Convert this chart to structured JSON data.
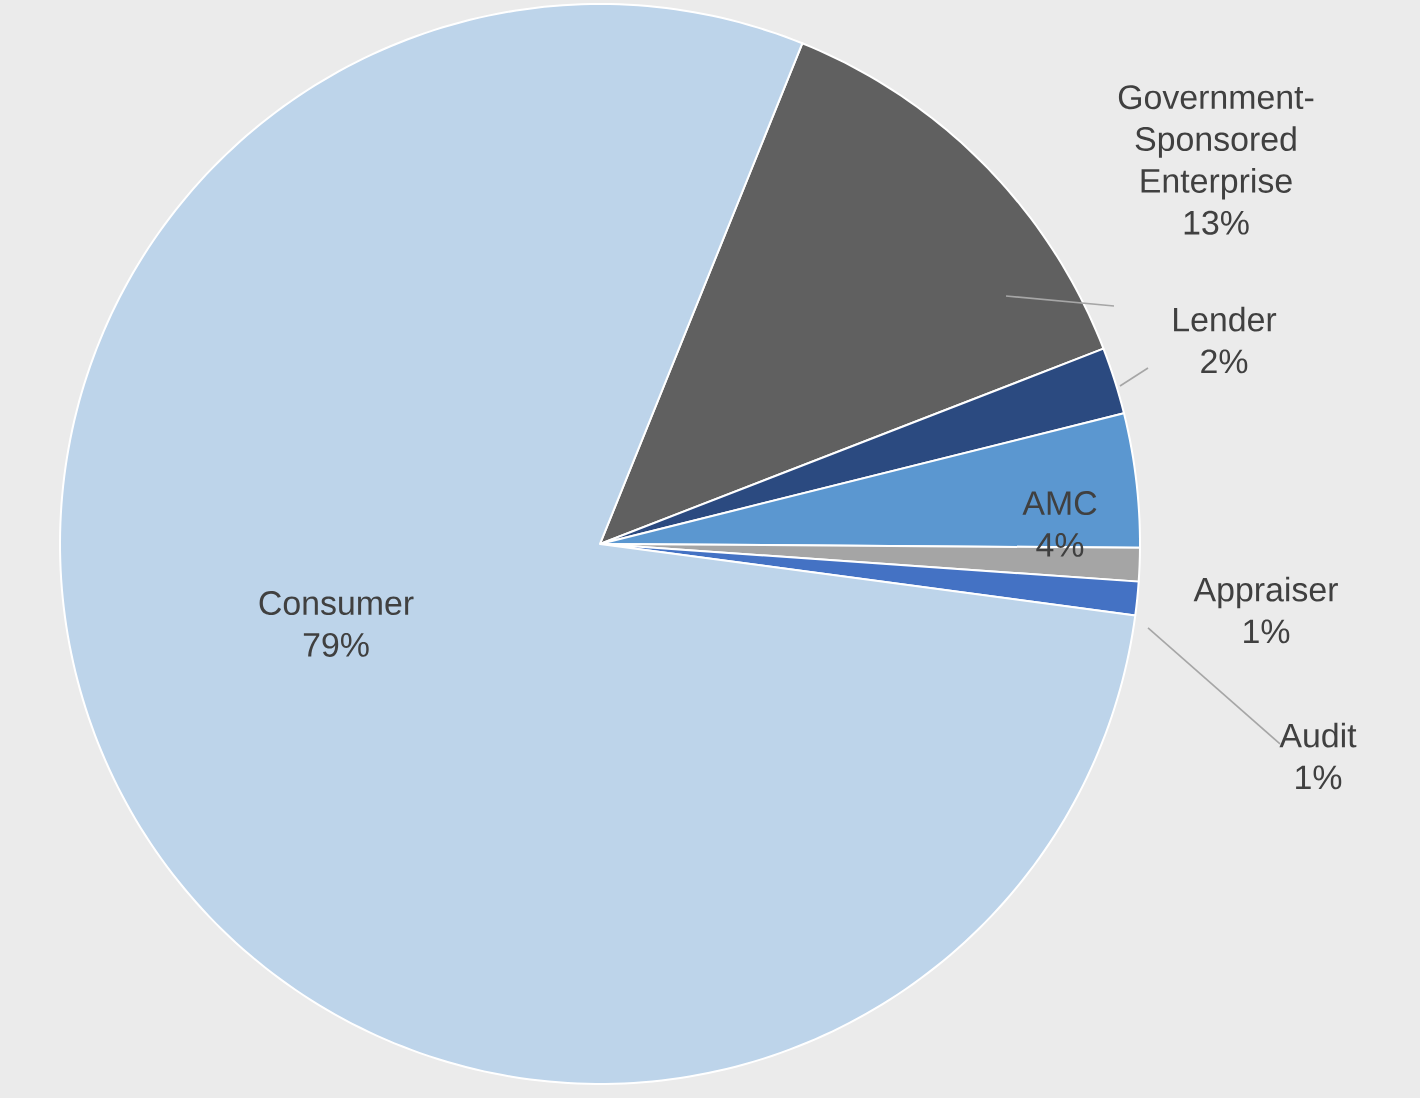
{
  "chart_data": {
    "type": "pie",
    "categories": [
      "Government-Sponsored Enterprise",
      "Lender",
      "AMC",
      "Appraiser",
      "Audit",
      "Consumer"
    ],
    "values": [
      13,
      2,
      4,
      1,
      1,
      79
    ],
    "colors": [
      "#606060",
      "#2b4a80",
      "#5b97d0",
      "#a5a5a5",
      "#4472c4",
      "#bdd4ea"
    ],
    "data_labels": true,
    "value_labels": [
      "13%",
      "2%",
      "4%",
      "1%",
      "1%",
      "79%"
    ]
  }
}
